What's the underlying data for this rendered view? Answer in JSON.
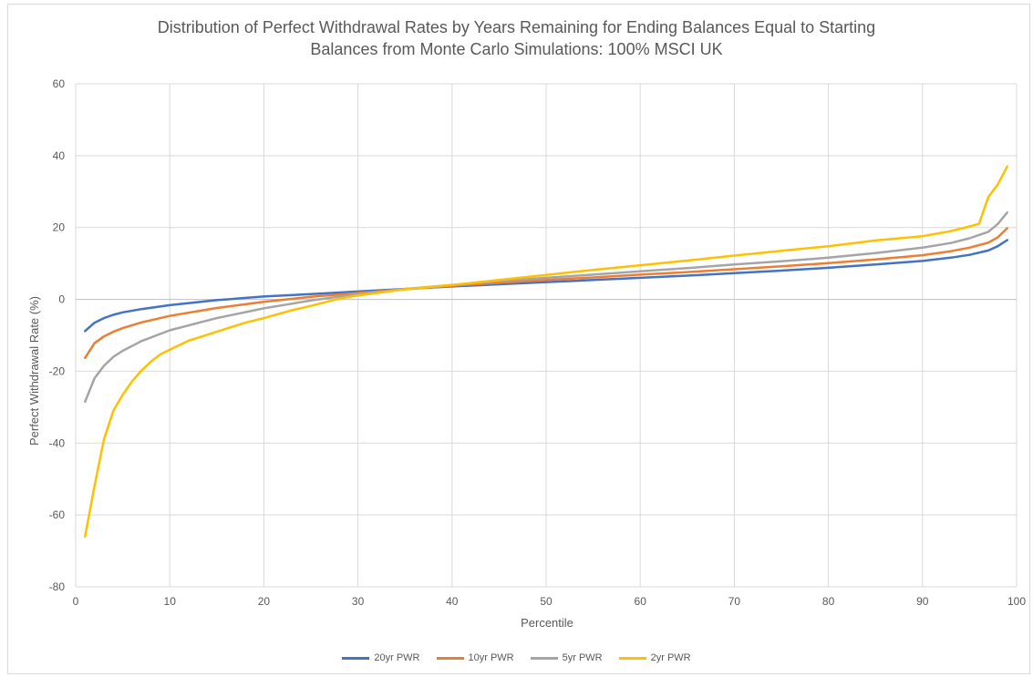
{
  "chart_data": {
    "type": "line",
    "title": "Distribution of Perfect Withdrawal Rates by Years Remaining for Ending Balances Equal to Starting\nBalances from Monte Carlo Simulations: 100% MSCI UK",
    "xlabel": "Percentile",
    "ylabel": "Perfect Withdrawal Rate (%)",
    "xlim": [
      0,
      100
    ],
    "ylim": [
      -80,
      60
    ],
    "xticks": [
      0,
      10,
      20,
      30,
      40,
      50,
      60,
      70,
      80,
      90,
      100
    ],
    "yticks": [
      -80,
      -60,
      -40,
      -20,
      0,
      20,
      40,
      60
    ],
    "grid": true,
    "legend_position": "bottom",
    "series": [
      {
        "name": "20yr PWR",
        "color": "#4472c4",
        "x": [
          1,
          2,
          3,
          4,
          5,
          7,
          10,
          15,
          20,
          25,
          30,
          35,
          40,
          45,
          50,
          55,
          60,
          65,
          70,
          75,
          80,
          85,
          90,
          93,
          95,
          97,
          98,
          99
        ],
        "values": [
          -8.8,
          -6.5,
          -5.2,
          -4.3,
          -3.6,
          -2.7,
          -1.6,
          -0.2,
          0.8,
          1.5,
          2.2,
          2.9,
          3.6,
          4.2,
          4.8,
          5.4,
          6.0,
          6.6,
          7.3,
          8.0,
          8.8,
          9.7,
          10.7,
          11.6,
          12.4,
          13.6,
          14.8,
          16.5
        ]
      },
      {
        "name": "10yr PWR",
        "color": "#ed7d31",
        "x": [
          1,
          2,
          3,
          4,
          5,
          7,
          10,
          15,
          20,
          25,
          30,
          35,
          40,
          45,
          50,
          55,
          60,
          65,
          70,
          75,
          80,
          85,
          90,
          93,
          95,
          97,
          98,
          99
        ],
        "values": [
          -16.3,
          -12.2,
          -10.3,
          -9.0,
          -8.0,
          -6.4,
          -4.6,
          -2.4,
          -0.7,
          0.7,
          1.8,
          2.8,
          3.8,
          4.6,
          5.4,
          6.1,
          6.9,
          7.6,
          8.4,
          9.2,
          10.1,
          11.1,
          12.3,
          13.4,
          14.4,
          15.8,
          17.3,
          19.8
        ]
      },
      {
        "name": "5yr PWR",
        "color": "#a5a5a5",
        "x": [
          1,
          2,
          3,
          4,
          5,
          7,
          10,
          15,
          20,
          25,
          30,
          35,
          40,
          45,
          50,
          55,
          60,
          65,
          70,
          75,
          80,
          85,
          90,
          93,
          95,
          97,
          98,
          99
        ],
        "values": [
          -28.5,
          -22.0,
          -18.5,
          -16.0,
          -14.3,
          -11.6,
          -8.6,
          -5.2,
          -2.5,
          -0.3,
          1.5,
          2.9,
          4.0,
          5.1,
          6.0,
          6.9,
          7.8,
          8.7,
          9.7,
          10.6,
          11.6,
          12.9,
          14.4,
          15.7,
          17.0,
          18.8,
          21.0,
          24.2
        ]
      },
      {
        "name": "2yr PWR",
        "color": "#ffc000",
        "x": [
          1,
          2,
          3,
          4,
          5,
          6,
          7,
          8,
          9,
          10,
          12,
          15,
          18,
          20,
          23,
          25,
          28,
          30,
          35,
          40,
          45,
          50,
          55,
          60,
          65,
          70,
          75,
          80,
          85,
          90,
          93,
          95,
          96,
          97,
          98,
          99
        ],
        "values": [
          -66.0,
          -52.0,
          -39.0,
          -31.0,
          -26.5,
          -22.8,
          -19.8,
          -17.3,
          -15.3,
          -14.0,
          -11.5,
          -9.0,
          -6.5,
          -5.2,
          -3.0,
          -1.8,
          0.2,
          1.1,
          2.8,
          4.0,
          5.4,
          6.8,
          8.2,
          9.5,
          10.8,
          12.2,
          13.5,
          14.8,
          16.4,
          17.6,
          19.0,
          20.3,
          21.0,
          28.5,
          32.0,
          37.0
        ]
      }
    ]
  }
}
